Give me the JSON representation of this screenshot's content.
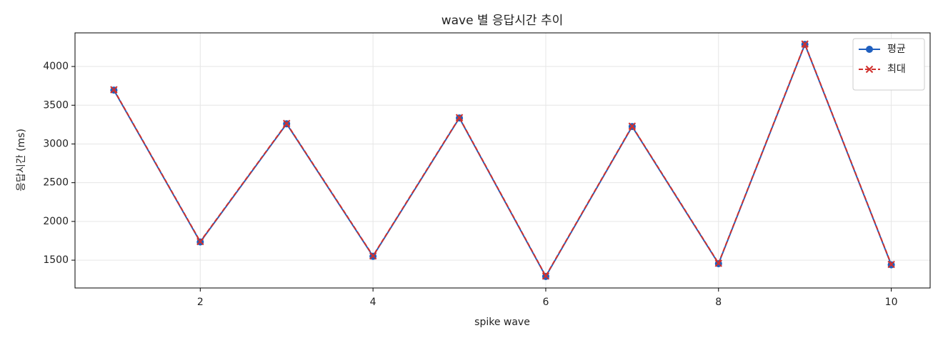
{
  "chart_data": {
    "type": "line",
    "title": "wave 별 응답시간 추이",
    "x_label": "spike wave",
    "y_label": "응답시간 (ms)",
    "x": [
      1,
      2,
      3,
      4,
      5,
      6,
      7,
      8,
      9,
      10
    ],
    "series": [
      {
        "name": "평균",
        "color": "#1f5fbf",
        "marker": "o",
        "dash": false,
        "values": [
          3695,
          1735,
          3260,
          1550,
          3335,
          1290,
          3225,
          1455,
          4285,
          1440
        ]
      },
      {
        "name": "최대",
        "color": "#d0312d",
        "marker": "x",
        "dash": true,
        "values": [
          3700,
          1740,
          3265,
          1555,
          3340,
          1295,
          3230,
          1460,
          4290,
          1445
        ]
      }
    ],
    "xlim": [
      0.55,
      10.45
    ],
    "xticks": [
      2,
      4,
      6,
      8,
      10
    ],
    "ylim": [
      1141,
      4434
    ],
    "yticks": [
      1500,
      2000,
      2500,
      3000,
      3500,
      4000
    ],
    "grid": true,
    "legend": "upper right"
  }
}
